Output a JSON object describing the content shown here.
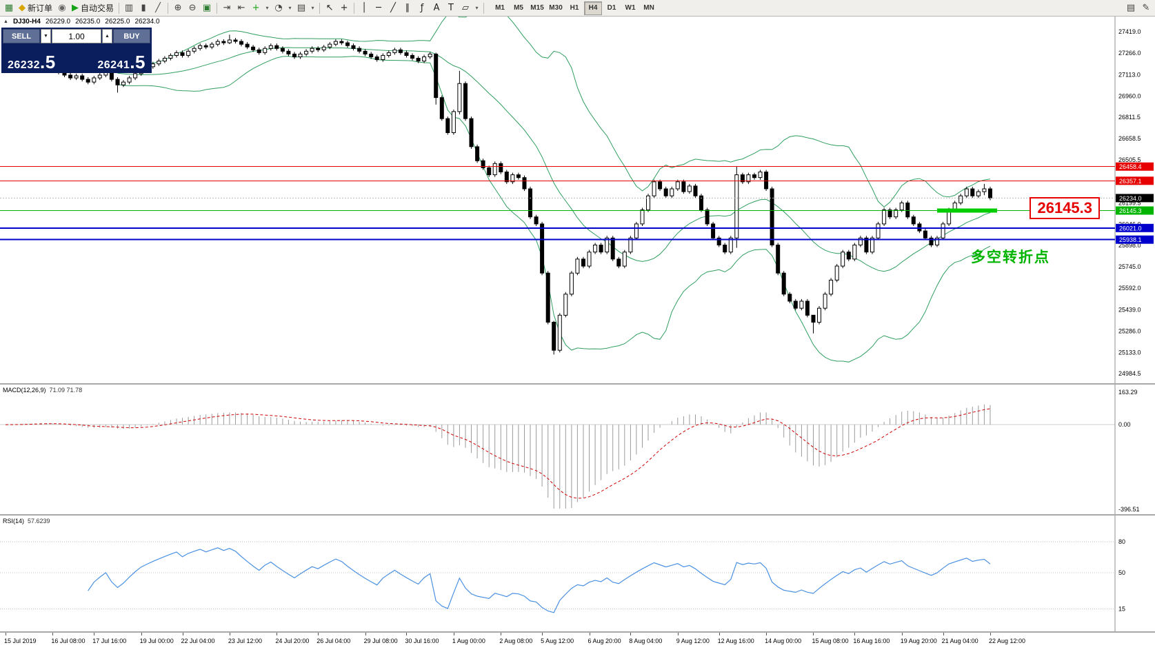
{
  "toolbar": {
    "items": [
      {
        "t": "icon",
        "name": "chart-window-icon",
        "g": "▦",
        "c": "#2e7d32"
      },
      {
        "t": "btn",
        "name": "new-order-button",
        "g": "◆",
        "gc": "#d8a400",
        "label": "新订单"
      },
      {
        "t": "icon",
        "name": "expert-advisors-icon",
        "g": "◉",
        "c": "#666666"
      },
      {
        "t": "btn",
        "name": "autotrading-button",
        "g": "▶",
        "gc": "#17a317",
        "label": "自动交易"
      },
      {
        "t": "sep"
      },
      {
        "t": "icon",
        "name": "bar-chart-icon",
        "g": "▥",
        "c": "#444444"
      },
      {
        "t": "icon",
        "name": "candlestick-chart-icon",
        "g": "▮",
        "c": "#444444"
      },
      {
        "t": "icon",
        "name": "line-chart-icon",
        "g": "╱",
        "c": "#444444"
      },
      {
        "t": "sep"
      },
      {
        "t": "icon",
        "name": "zoom-in-icon",
        "g": "⊕",
        "c": "#444444"
      },
      {
        "t": "icon",
        "name": "zoom-out-icon",
        "g": "⊖",
        "c": "#444444"
      },
      {
        "t": "icon",
        "name": "tile-windows-icon",
        "g": "▣",
        "c": "#2e7d32"
      },
      {
        "t": "sep"
      },
      {
        "t": "icon",
        "name": "auto-scroll-icon",
        "g": "⇥",
        "c": "#444444"
      },
      {
        "t": "icon",
        "name": "chart-shift-icon",
        "g": "⇤",
        "c": "#444444"
      },
      {
        "t": "icon",
        "name": "indicators-icon",
        "g": "+",
        "c": "#17a317"
      },
      {
        "t": "drop",
        "name": "indicators-dropdown"
      },
      {
        "t": "icon",
        "name": "periods-icon",
        "g": "◔",
        "c": "#444444"
      },
      {
        "t": "drop",
        "name": "periods-dropdown"
      },
      {
        "t": "icon",
        "name": "templates-icon",
        "g": "▤",
        "c": "#444444"
      },
      {
        "t": "drop",
        "name": "templates-dropdown"
      },
      {
        "t": "sep"
      },
      {
        "t": "icon",
        "name": "cursor-icon",
        "g": "↖",
        "c": "#222222"
      },
      {
        "t": "icon",
        "name": "crosshair-icon",
        "g": "+",
        "c": "#222222"
      },
      {
        "t": "sep"
      },
      {
        "t": "icon",
        "name": "vertical-line-icon",
        "g": "│",
        "c": "#222222"
      },
      {
        "t": "icon",
        "name": "horizontal-line-icon",
        "g": "─",
        "c": "#222222"
      },
      {
        "t": "icon",
        "name": "trendline-icon",
        "g": "╱",
        "c": "#222222"
      },
      {
        "t": "icon",
        "name": "equidistant-channel-icon",
        "g": "∥",
        "c": "#222222"
      },
      {
        "t": "icon",
        "name": "fibonacci-icon",
        "g": "ƒ",
        "c": "#222222"
      },
      {
        "t": "icon",
        "name": "text-icon",
        "g": "A",
        "c": "#222222"
      },
      {
        "t": "icon",
        "name": "label-icon",
        "g": "T",
        "c": "#222222"
      },
      {
        "t": "icon",
        "name": "shapes-icon",
        "g": "▱",
        "c": "#222222"
      },
      {
        "t": "drop",
        "name": "shapes-dropdown"
      },
      {
        "t": "sep"
      }
    ],
    "timeframes": [
      "M1",
      "M5",
      "M15",
      "M30",
      "H1",
      "H4",
      "D1",
      "W1",
      "MN"
    ],
    "active_timeframe": "H4",
    "right_items": [
      {
        "t": "icon",
        "name": "window-layout-icon",
        "g": "▤",
        "c": "#444444"
      },
      {
        "t": "icon",
        "name": "edit-icon",
        "g": "✎",
        "c": "#444444"
      }
    ]
  },
  "symbol_info": {
    "collapse_glyph": "▲",
    "title": "DJ30-H4",
    "open": "26229.0",
    "high": "26235.0",
    "low": "26225.0",
    "close": "26234.0"
  },
  "trade_panel": {
    "sell_label": "SELL",
    "buy_label": "BUY",
    "volume": "1.00",
    "spin_down": "▼",
    "spin_up": "▲",
    "sell_price_main": "26232",
    "sell_price_frac": ".5",
    "buy_price_main": "26241",
    "buy_price_frac": ".5"
  },
  "chart_data": {
    "type": "candlestick",
    "symbol": "DJ30",
    "timeframe": "H4",
    "price_scale": {
      "min": 24984.5,
      "max": 27419.0
    },
    "price_axis_labels": [
      "27419.0",
      "27266.0",
      "27113.0",
      "26960.0",
      "26811.5",
      "26658.5",
      "26505.5",
      "26352.5",
      "26199.5",
      "26046.0",
      "25898.0",
      "25745.0",
      "25592.0",
      "25439.0",
      "25286.0",
      "25133.0",
      "24984.5"
    ],
    "closes": [
      27140,
      27160,
      27150,
      27170,
      27160,
      27180,
      27170,
      27160,
      27150,
      27130,
      27110,
      27090,
      27105,
      27080,
      27060,
      27090,
      27110,
      27130,
      27080,
      27040,
      27060,
      27090,
      27120,
      27150,
      27170,
      27190,
      27210,
      27230,
      27250,
      27270,
      27250,
      27280,
      27300,
      27320,
      27310,
      27330,
      27350,
      27340,
      27360,
      27350,
      27330,
      27310,
      27290,
      27270,
      27300,
      27320,
      27300,
      27280,
      27260,
      27240,
      27260,
      27280,
      27300,
      27290,
      27310,
      27330,
      27350,
      27340,
      27320,
      27300,
      27280,
      27260,
      27240,
      27220,
      27250,
      27270,
      27290,
      27270,
      27250,
      27230,
      27210,
      27240,
      27260,
      26950,
      26800,
      26700,
      26850,
      27050,
      26800,
      26600,
      26500,
      26450,
      26400,
      26480,
      26420,
      26350,
      26400,
      26380,
      26300,
      26100,
      26050,
      25700,
      25350,
      25150,
      25400,
      25550,
      25700,
      25800,
      25750,
      25850,
      25900,
      25850,
      25950,
      25800,
      25750,
      25850,
      25950,
      26050,
      26150,
      26250,
      26350,
      26300,
      26250,
      26300,
      26350,
      26280,
      26320,
      26250,
      26150,
      26050,
      25950,
      25900,
      25850,
      25950,
      26400,
      26350,
      26400,
      26380,
      26420,
      26300,
      25900,
      25700,
      25550,
      25500,
      25450,
      25500,
      25400,
      25350,
      25450,
      25550,
      25650,
      25750,
      25850,
      25800,
      25900,
      25950,
      25850,
      25950,
      26050,
      26150,
      26100,
      26150,
      26200,
      26100,
      26050,
      26000,
      25950,
      25900,
      25950,
      26050,
      26150,
      26200,
      26250,
      26300,
      26250,
      26280,
      26300,
      26234
    ],
    "wick_overrides": {
      "19": [
        27095,
        26985
      ],
      "38": [
        27398,
        27330
      ],
      "73": [
        27270,
        26900
      ],
      "77": [
        27140,
        26830
      ],
      "93": [
        25360,
        25120
      ],
      "124": [
        26460,
        25880
      ],
      "137": [
        25390,
        25270
      ],
      "166": [
        26335,
        26255
      ]
    },
    "bollinger": {
      "period": 20,
      "deviation": 2
    },
    "hlines": [
      {
        "price": 26458.4,
        "label": "26458.4",
        "color": "#e60000",
        "width": 1
      },
      {
        "price": 26357.1,
        "label": "26357.1",
        "color": "#e60000",
        "width": 1
      },
      {
        "price": 26145.3,
        "label": "26145.3",
        "color": "#00b400",
        "width": 1
      },
      {
        "price": 26021.0,
        "label": "26021.0",
        "color": "#0000cc",
        "width": 2
      },
      {
        "price": 25938.1,
        "label": "25938.1",
        "color": "#0000cc",
        "width": 2
      }
    ],
    "bid": {
      "price": 26234.0,
      "label": "26234.0",
      "color": "#000000"
    },
    "green_segment": {
      "price": 26145.3,
      "from_bar": 158,
      "to_bar": 167,
      "color": "#00cc00",
      "width": 6
    },
    "annotations": {
      "price_box": "26145.3",
      "turning_point": "多空转折点"
    },
    "time_labels": [
      "15 Jul 2019",
      "16 Jul 08:00",
      "17 Jul 16:00",
      "19 Jul 00:00",
      "22 Jul 04:00",
      "23 Jul 12:00",
      "24 Jul 20:00",
      "26 Jul 04:00",
      "29 Jul 08:00",
      "30 Jul 16:00",
      "1 Aug 00:00",
      "2 Aug 08:00",
      "5 Aug 12:00",
      "6 Aug 20:00",
      "8 Aug 04:00",
      "9 Aug 12:00",
      "12 Aug 16:00",
      "14 Aug 00:00",
      "15 Aug 08:00",
      "16 Aug 16:00",
      "19 Aug 20:00",
      "21 Aug 04:00",
      "22 Aug 12:00"
    ],
    "macd": {
      "label": "MACD(12,26,9)",
      "values_text": "71.09 71.78",
      "fast": 12,
      "slow": 26,
      "signal": 9,
      "max": 163.29,
      "min": -396.51,
      "axis_labels": [
        "163.29",
        "0.00",
        "-396.51"
      ]
    },
    "rsi": {
      "label": "RSI(14)",
      "value_text": "57.6239",
      "period": 14,
      "levels": [
        80,
        50,
        15
      ]
    },
    "colors": {
      "bollinger": "#2f9e5f",
      "up_candle": "#ffffff",
      "down_candle": "#000000",
      "candle_border": "#000000",
      "macd_hist": "#9a9a9a",
      "macd_signal": "#d00000",
      "rsi_line": "#4a90e2",
      "axis_text": "#000000"
    }
  }
}
